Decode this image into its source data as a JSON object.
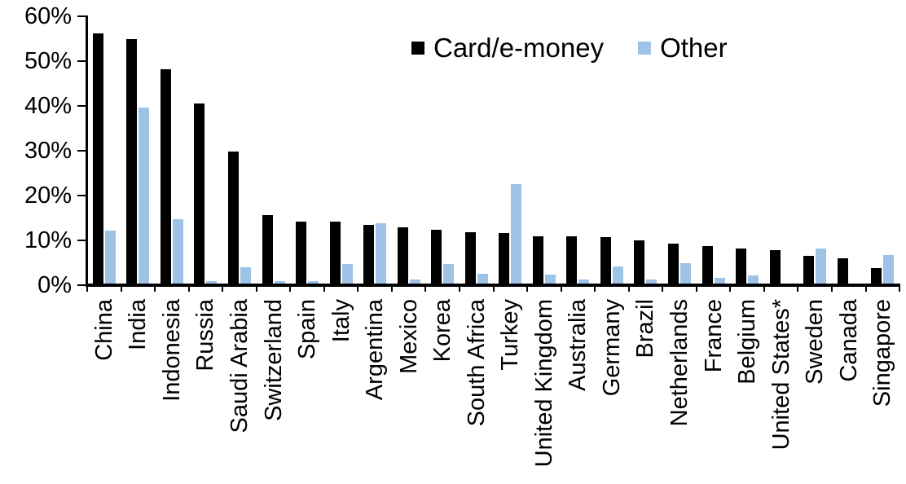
{
  "chart_data": {
    "type": "bar",
    "title": "",
    "xlabel": "",
    "ylabel": "",
    "ylim": [
      0,
      60
    ],
    "ytick_step": 10,
    "ytick_labels": [
      "0%",
      "10%",
      "20%",
      "30%",
      "40%",
      "50%",
      "60%"
    ],
    "grid": false,
    "legend_position": "top",
    "categories": [
      "China",
      "India",
      "Indonesia",
      "Russia",
      "Saudi Arabia",
      "Switzerland",
      "Spain",
      "Italy",
      "Argentina",
      "Mexico",
      "Korea",
      "South Africa",
      "Turkey",
      "United Kingdom",
      "Australia",
      "Germany",
      "Brazil",
      "Netherlands",
      "France",
      "Belgium",
      "United States*",
      "Sweden",
      "Canada",
      "Singapore"
    ],
    "series": [
      {
        "name": "Card/e-money",
        "color": "#000000",
        "values": [
          56.2,
          55.0,
          48.2,
          40.5,
          29.8,
          15.7,
          14.2,
          14.1,
          13.5,
          13.0,
          12.4,
          11.9,
          11.7,
          11.0,
          10.9,
          10.8,
          10.0,
          9.3,
          8.7,
          8.2,
          7.9,
          6.5,
          6.0,
          3.9
        ]
      },
      {
        "name": "Other",
        "color": "#9dc3e6",
        "values": [
          12.2,
          39.6,
          14.7,
          1.0,
          4.0,
          0.9,
          0.9,
          4.7,
          13.9,
          1.3,
          4.7,
          2.5,
          22.5,
          2.3,
          1.2,
          4.1,
          1.2,
          4.9,
          1.6,
          2.2,
          0.4,
          8.1,
          0.0,
          6.8
        ]
      }
    ]
  },
  "legend": {
    "items": [
      {
        "label": "Card/e-money",
        "color": "#000000"
      },
      {
        "label": "Other",
        "color": "#9dc3e6"
      }
    ]
  }
}
